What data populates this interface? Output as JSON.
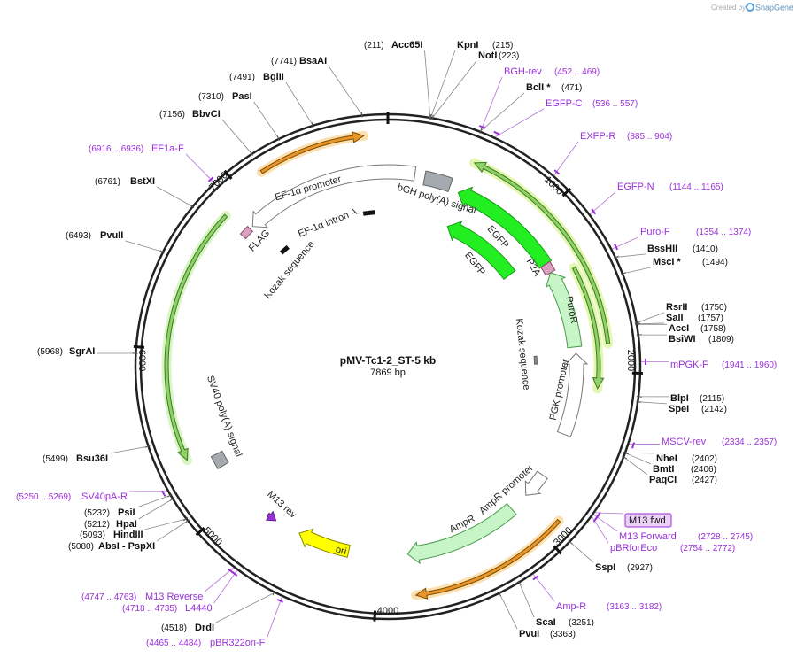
{
  "branding": {
    "prefix": "Created by",
    "name": "SnapGene"
  },
  "map": {
    "title": "pMV-Tc1-2_ST-5 kb",
    "length": "7869 bp",
    "scale_ticks": [
      1000,
      2000,
      3000,
      4000,
      5000,
      6000,
      7000
    ],
    "features": [
      {
        "label": "EF-1α promoter"
      },
      {
        "label": "bGH poly(A) signal"
      },
      {
        "label": "EF-1α intron A"
      },
      {
        "label": "FLAG"
      },
      {
        "label": "Kozak sequence"
      },
      {
        "label": "Kozak sequence"
      },
      {
        "label": "EGFP"
      },
      {
        "label": "EGFP"
      },
      {
        "label": "P2A"
      },
      {
        "label": "PuroR"
      },
      {
        "label": "PGK promoter"
      },
      {
        "label": "SV40 poly(A) signal"
      },
      {
        "label": "M13 rev"
      },
      {
        "label": "AmpR"
      },
      {
        "label": "AmpR promoter"
      },
      {
        "label": "ori"
      }
    ],
    "enzymes": [
      {
        "name": "Acc65I",
        "site": "(211)"
      },
      {
        "name": "KpnI",
        "site": "(215)"
      },
      {
        "name": "NotI",
        "site": "(223)"
      },
      {
        "name": "BclI *",
        "site": "(471)"
      },
      {
        "name": "BssHII",
        "site": "(1410)"
      },
      {
        "name": "MscI *",
        "site": "(1494)"
      },
      {
        "name": "RsrII",
        "site": "(1750)"
      },
      {
        "name": "SalI",
        "site": "(1757)"
      },
      {
        "name": "AccI",
        "site": "(1758)"
      },
      {
        "name": "BsiWI",
        "site": "(1809)"
      },
      {
        "name": "BlpI",
        "site": "(2115)"
      },
      {
        "name": "SpeI",
        "site": "(2142)"
      },
      {
        "name": "NheI",
        "site": "(2402)"
      },
      {
        "name": "BmtI",
        "site": "(2406)"
      },
      {
        "name": "PaqCI",
        "site": "(2427)"
      },
      {
        "name": "SspI",
        "site": "(2927)"
      },
      {
        "name": "ScaI",
        "site": "(3251)"
      },
      {
        "name": "PvuI",
        "site": "(3363)"
      },
      {
        "name": "DrdI",
        "site": "(4518)"
      },
      {
        "name": "AbsI  - PspXI",
        "site": "(5080)"
      },
      {
        "name": "HindIII",
        "site": "(5093)"
      },
      {
        "name": "HpaI",
        "site": "(5212)"
      },
      {
        "name": "PsiI",
        "site": "(5232)"
      },
      {
        "name": "Bsu36I",
        "site": "(5499)"
      },
      {
        "name": "SgrAI",
        "site": "(5968)"
      },
      {
        "name": "PvuII",
        "site": "(6493)"
      },
      {
        "name": "BstXI",
        "site": "(6761)"
      },
      {
        "name": "BbvCI",
        "site": "(7156)"
      },
      {
        "name": "PasI",
        "site": "(7310)"
      },
      {
        "name": "BglII",
        "site": "(7491)"
      },
      {
        "name": "BsaAI",
        "site": "(7741)"
      }
    ],
    "primers": [
      {
        "name": "BGH-rev",
        "range": "(452 .. 469)"
      },
      {
        "name": "EGFP-C",
        "range": "(536 .. 557)"
      },
      {
        "name": "EXFP-R",
        "range": "(885 .. 904)"
      },
      {
        "name": "EGFP-N",
        "range": "(1144 .. 1165)"
      },
      {
        "name": "Puro-F",
        "range": "(1354 .. 1374)"
      },
      {
        "name": "mPGK-F",
        "range": "(1941 .. 1960)"
      },
      {
        "name": "MSCV-rev",
        "range": "(2334 .. 2357)"
      },
      {
        "name": "M13 fwd"
      },
      {
        "name": "M13 Forward",
        "range": "(2728 .. 2745)"
      },
      {
        "name": "pBRforEco",
        "range": "(2754 .. 2772)"
      },
      {
        "name": "Amp-R",
        "range": "(3163 .. 3182)"
      },
      {
        "name": "M13 Reverse",
        "range": "(4747 .. 4763)"
      },
      {
        "name": "L4440",
        "range": "(4718 .. 4735)"
      },
      {
        "name": "pBR322ori-F",
        "range": "(4465 .. 4484)"
      },
      {
        "name": "SV40pA-R",
        "range": "(5250 .. 5269)"
      },
      {
        "name": "EF1a-F",
        "range": "(6916 .. 6936)"
      }
    ]
  }
}
